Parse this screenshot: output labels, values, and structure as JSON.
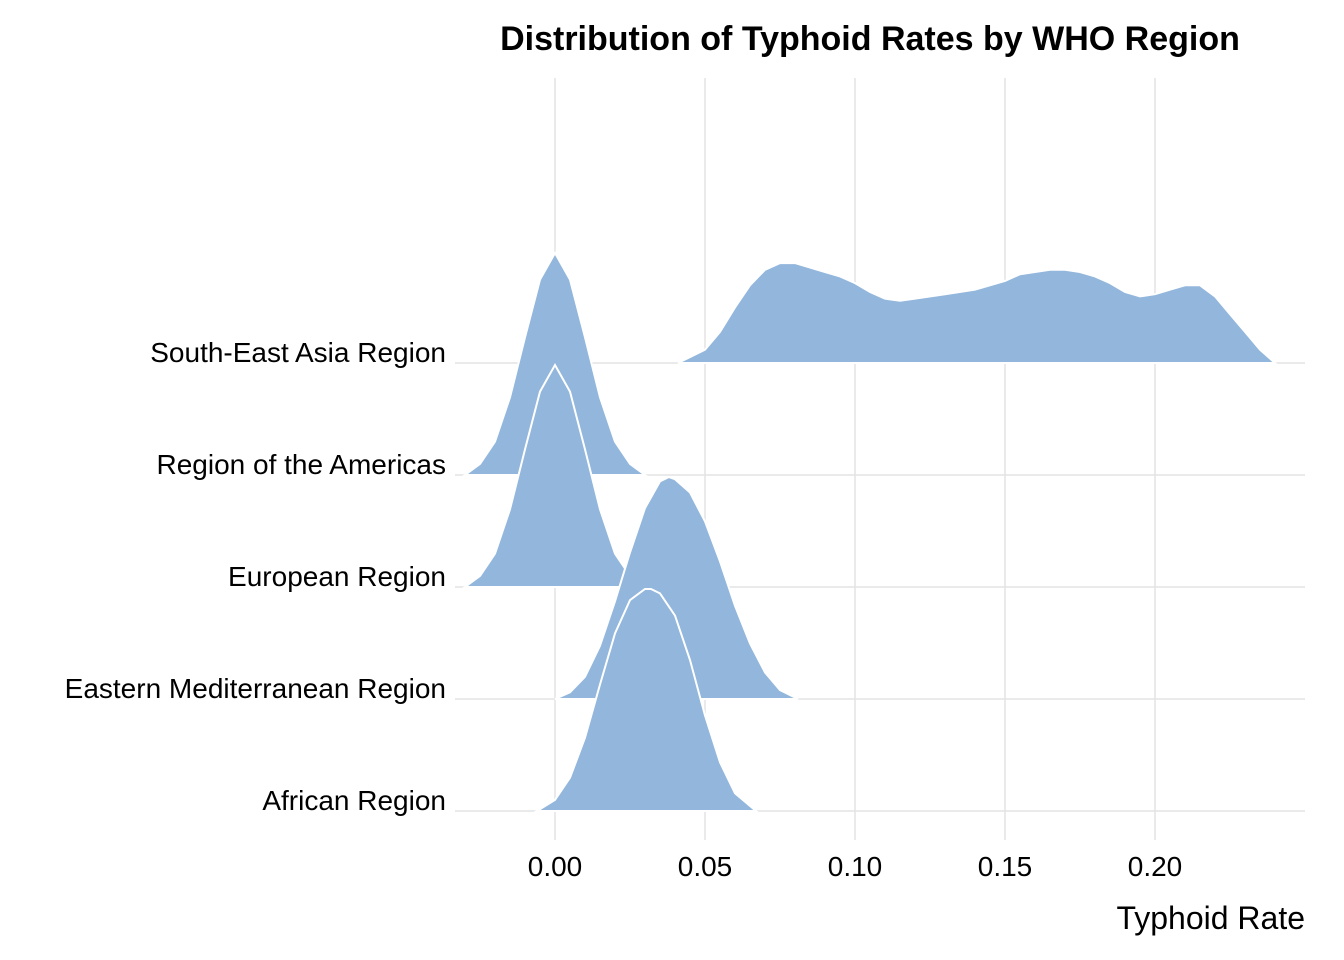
{
  "chart_data": {
    "type": "ridgeline",
    "title": "Distribution of Typhoid Rates by WHO Region",
    "xlabel": "Typhoid Rate",
    "ylabel": "",
    "xlim": [
      -0.033,
      0.25
    ],
    "x_ticks": [
      0.0,
      0.05,
      0.1,
      0.15,
      0.2
    ],
    "x_tick_labels": [
      "0.00",
      "0.05",
      "0.10",
      "0.15",
      "0.20"
    ],
    "grid": true,
    "fill_color": "#92b6dc",
    "outline_color": "#ffffff",
    "categories": [
      "African Region",
      "Eastern Mediterranean Region",
      "European Region",
      "Region of the Americas",
      "South-East Asia Region"
    ],
    "series": [
      {
        "category": "African Region",
        "density_x": [
          -0.006,
          0.0,
          0.005,
          0.01,
          0.015,
          0.02,
          0.025,
          0.03,
          0.032,
          0.035,
          0.04,
          0.045,
          0.05,
          0.055,
          0.06,
          0.067
        ],
        "density_y": [
          0.0,
          0.05,
          0.15,
          0.33,
          0.57,
          0.8,
          0.95,
          1.0,
          1.0,
          0.98,
          0.88,
          0.68,
          0.43,
          0.22,
          0.08,
          0.0
        ]
      },
      {
        "category": "Eastern Mediterranean Region",
        "density_x": [
          0.0,
          0.005,
          0.01,
          0.015,
          0.02,
          0.025,
          0.03,
          0.035,
          0.038,
          0.04,
          0.045,
          0.05,
          0.055,
          0.06,
          0.065,
          0.07,
          0.075,
          0.081
        ],
        "density_y": [
          0.0,
          0.03,
          0.1,
          0.24,
          0.44,
          0.66,
          0.86,
          0.98,
          1.0,
          0.99,
          0.93,
          0.8,
          0.62,
          0.42,
          0.25,
          0.12,
          0.04,
          0.0
        ]
      },
      {
        "category": "European Region",
        "density_x": [
          -0.03,
          -0.025,
          -0.02,
          -0.015,
          -0.01,
          -0.005,
          0.0,
          0.005,
          0.01,
          0.015,
          0.02,
          0.025,
          0.03
        ],
        "density_y": [
          0.0,
          0.05,
          0.15,
          0.35,
          0.62,
          0.88,
          1.0,
          0.88,
          0.62,
          0.35,
          0.15,
          0.05,
          0.0
        ]
      },
      {
        "category": "Region of the Americas",
        "density_x": [
          -0.03,
          -0.025,
          -0.02,
          -0.015,
          -0.01,
          -0.005,
          0.0,
          0.005,
          0.01,
          0.015,
          0.02,
          0.025,
          0.03
        ],
        "density_y": [
          0.0,
          0.05,
          0.15,
          0.35,
          0.62,
          0.88,
          1.0,
          0.88,
          0.62,
          0.35,
          0.15,
          0.05,
          0.0
        ]
      },
      {
        "category": "South-East Asia Region",
        "density_x": [
          0.041,
          0.05,
          0.055,
          0.06,
          0.065,
          0.07,
          0.075,
          0.08,
          0.085,
          0.09,
          0.095,
          0.1,
          0.105,
          0.11,
          0.115,
          0.12,
          0.13,
          0.14,
          0.15,
          0.155,
          0.16,
          0.165,
          0.17,
          0.175,
          0.18,
          0.185,
          0.19,
          0.195,
          0.2,
          0.205,
          0.21,
          0.215,
          0.22,
          0.225,
          0.23,
          0.235,
          0.24
        ],
        "density_y": [
          0.0,
          0.06,
          0.14,
          0.25,
          0.35,
          0.42,
          0.45,
          0.45,
          0.43,
          0.41,
          0.39,
          0.36,
          0.32,
          0.29,
          0.28,
          0.29,
          0.31,
          0.33,
          0.37,
          0.4,
          0.41,
          0.42,
          0.42,
          0.41,
          0.39,
          0.36,
          0.32,
          0.3,
          0.31,
          0.33,
          0.35,
          0.35,
          0.3,
          0.22,
          0.14,
          0.06,
          0.0
        ]
      }
    ]
  }
}
